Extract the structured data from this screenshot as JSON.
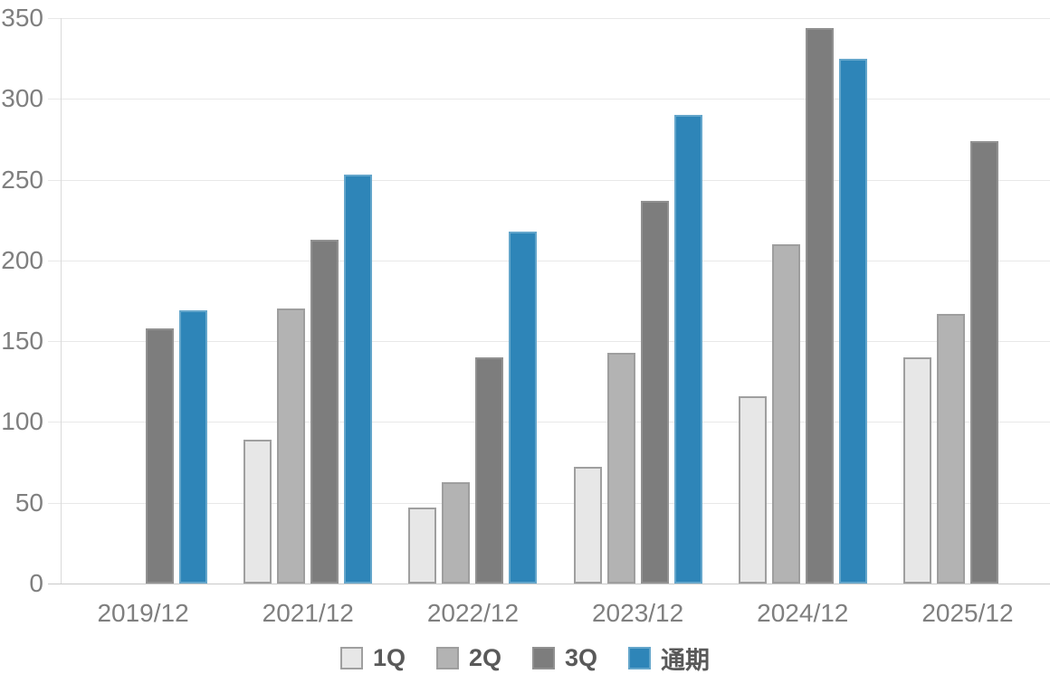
{
  "chart_data": {
    "type": "bar",
    "title": "",
    "xlabel": "",
    "ylabel": "",
    "categories": [
      "2019/12",
      "2021/12",
      "2022/12",
      "2023/12",
      "2024/12",
      "2025/12"
    ],
    "series": [
      {
        "key": "1q",
        "name": "1Q",
        "color": "#e7e7e7",
        "border_color": "#9f9f9f",
        "values": [
          null,
          89,
          47,
          72,
          116,
          140
        ]
      },
      {
        "key": "2q",
        "name": "2Q",
        "color": "#b3b3b3",
        "border_color": "#9e9e9e",
        "values": [
          null,
          170,
          63,
          143,
          210,
          167
        ]
      },
      {
        "key": "3q",
        "name": "3Q",
        "color": "#7d7d7d",
        "border_color": "#919191",
        "values": [
          158,
          213,
          140,
          237,
          344,
          274
        ]
      },
      {
        "key": "full-year",
        "name": "通期",
        "color": "#2e85b8",
        "border_color": "#64a6cb",
        "values": [
          169,
          253,
          218,
          290,
          325,
          null
        ]
      }
    ],
    "ylim": [
      0,
      350
    ],
    "yticks": [
      0,
      50,
      100,
      150,
      200,
      250,
      300,
      350
    ],
    "grid": true,
    "legend_position": "bottom"
  },
  "colors": {
    "gridline": "#e8e8e8",
    "baseline": "#c9c9c9",
    "y_axis_line": "#d9d9d9",
    "tick_label_text": "#7f7f7f",
    "legend_text": "#595959",
    "background": "#ffffff"
  }
}
